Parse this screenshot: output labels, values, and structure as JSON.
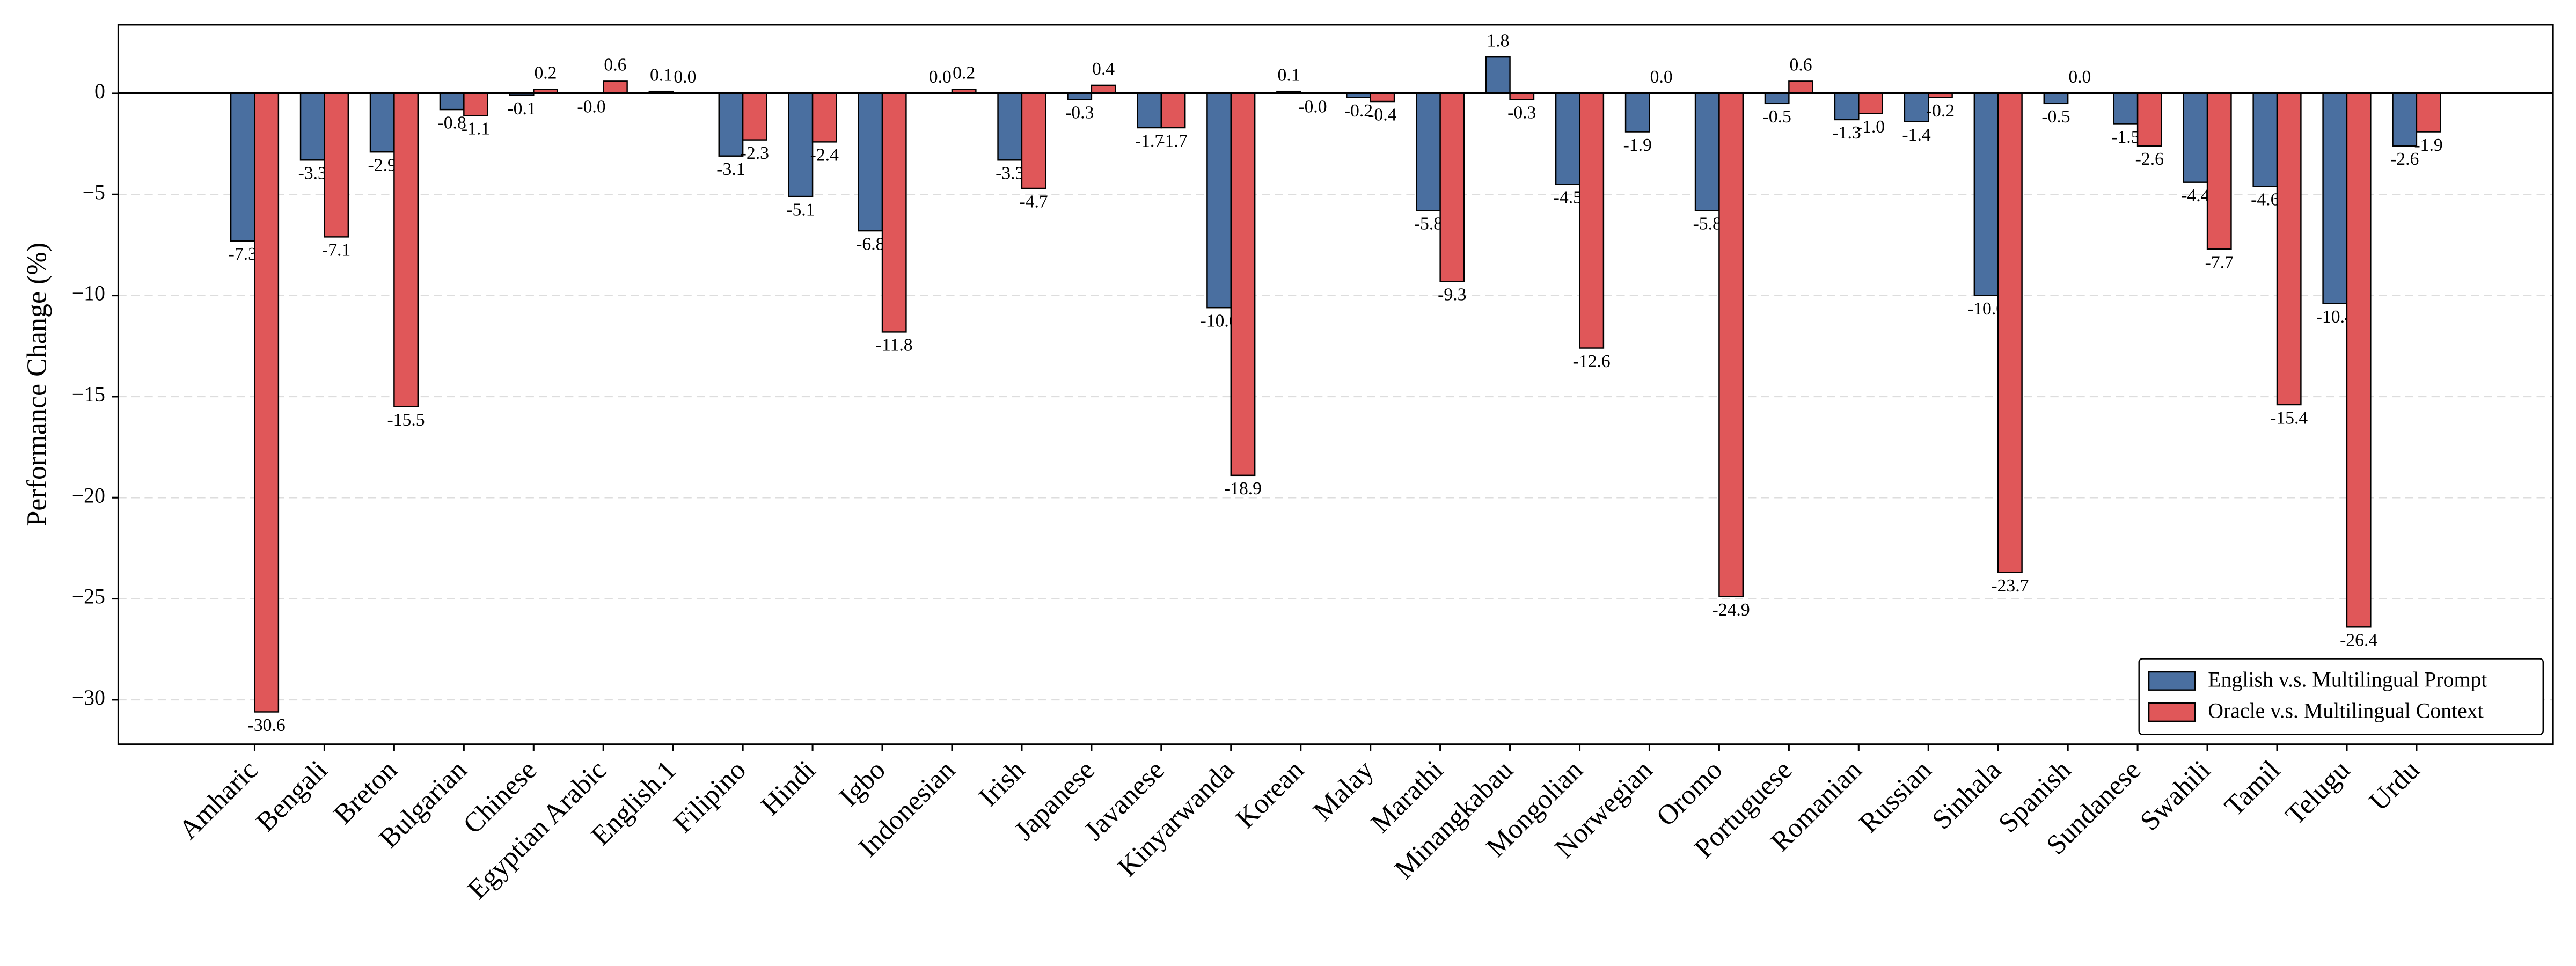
{
  "chart_data": {
    "type": "bar",
    "y_label": "Performance Change (%)",
    "categories": [
      "Amharic",
      "Bengali",
      "Breton",
      "Bulgarian",
      "Chinese",
      "Egyptian Arabic",
      "English.1",
      "Filipino",
      "Hindi",
      "Igbo",
      "Indonesian",
      "Irish",
      "Japanese",
      "Javanese",
      "Kinyarwanda",
      "Korean",
      "Malay",
      "Marathi",
      "Minangkabau",
      "Mongolian",
      "Norwegian",
      "Oromo",
      "Portuguese",
      "Romanian",
      "Russian",
      "Sinhala",
      "Spanish",
      "Sundanese",
      "Swahili",
      "Tamil",
      "Telugu",
      "Urdu"
    ],
    "series": [
      {
        "name": "English v.s. Multilingual Prompt",
        "color": "#4a6fa0",
        "values": [
          -7.3,
          -3.3,
          -2.9,
          -0.8,
          -0.1,
          0,
          0.1,
          -3.1,
          -5.1,
          -6.8,
          0,
          -3.3,
          -0.3,
          -1.7,
          -10.6,
          0.1,
          -0.2,
          -5.8,
          1.8,
          -4.5,
          -1.9,
          -5.8,
          -0.5,
          -1.3,
          -1.4,
          -10.0,
          -0.5,
          -1.5,
          -4.4,
          -4.6,
          -10.4,
          -2.6
        ],
        "value_labels": [
          "-7.3",
          "-3.3",
          "-2.9",
          "-0.8",
          "-0.1",
          "-0.0",
          "0.1",
          "-3.1",
          "-5.1",
          "-6.8",
          "0.0",
          "-3.3",
          "-0.3",
          "-1.7",
          "-10.6",
          "0.1",
          "-0.2",
          "-5.8",
          "1.8",
          "-4.5",
          "-1.9",
          "-5.8",
          "-0.5",
          "-1.3",
          "-1.4",
          "-10.0",
          "-0.5",
          "-1.5",
          "-4.4",
          "-4.6",
          "-10.4",
          "-2.6"
        ]
      },
      {
        "name": "Oracle v.s. Multilingual Context",
        "color": "#e05759",
        "values": [
          -30.6,
          -7.1,
          -15.5,
          -1.1,
          0.2,
          0.6,
          0,
          -2.3,
          -2.4,
          -11.8,
          0.2,
          -4.7,
          0.4,
          -1.7,
          -18.9,
          0,
          -0.4,
          -9.3,
          -0.3,
          -12.6,
          0,
          -24.9,
          0.6,
          -1.0,
          -0.2,
          -23.7,
          0,
          -2.6,
          -7.7,
          -15.4,
          -26.4,
          -1.9
        ],
        "value_labels": [
          "-30.6",
          "-7.1",
          "-15.5",
          "-1.1",
          "0.2",
          "0.6",
          "0.0",
          "-2.3",
          "-2.4",
          "-11.8",
          "0.2",
          "-4.7",
          "0.4",
          "-1.7",
          "-18.9",
          "-0.0",
          "-0.4",
          "-9.3",
          "-0.3",
          "-12.6",
          "0.0",
          "-24.9",
          "0.6",
          "-1.0",
          "-0.2",
          "-23.7",
          "0.0",
          "-2.6",
          "-7.7",
          "-15.4",
          "-26.4",
          "-1.9"
        ]
      }
    ],
    "ylim": [
      -32.2,
      3.4
    ],
    "yticks": [
      {
        "value": -30,
        "label": "−30"
      },
      {
        "value": -25,
        "label": "−25"
      },
      {
        "value": -20,
        "label": "−20"
      },
      {
        "value": -15,
        "label": "−15"
      },
      {
        "value": -10,
        "label": "−10"
      },
      {
        "value": -5,
        "label": "−5"
      },
      0
    ],
    "grid": true,
    "legend": "lower right"
  }
}
